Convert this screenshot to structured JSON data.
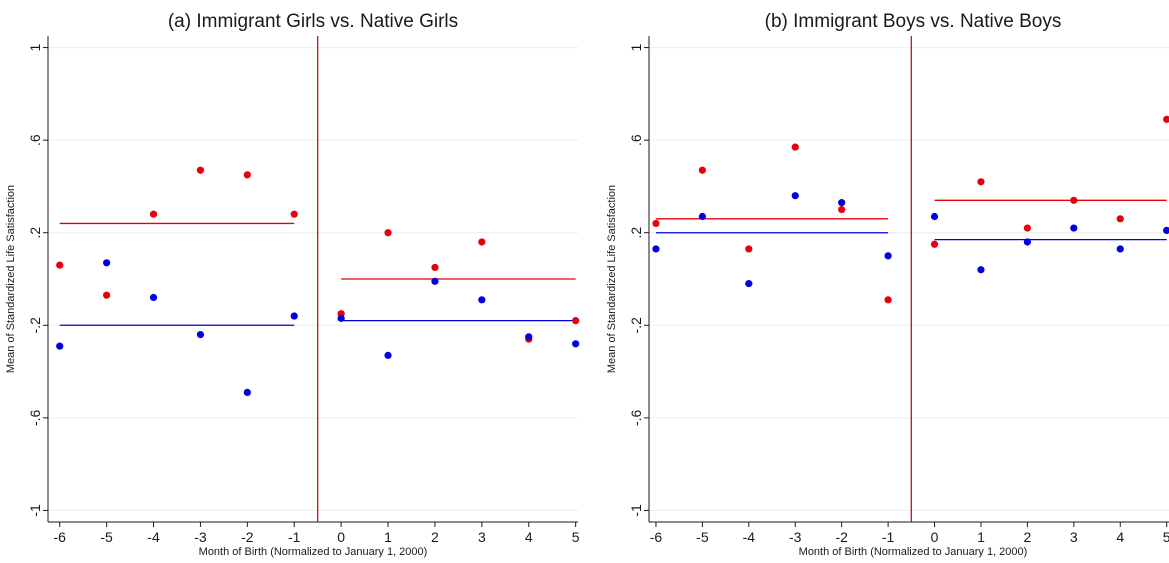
{
  "chart_data": [
    {
      "type": "scatter",
      "title": "(a) Immigrant Girls vs. Native Girls",
      "xlabel": "Month of Birth (Normalized to January 1, 2000)",
      "ylabel": "Mean of Standardized Life Satisfaction",
      "xticks": [
        "-6",
        "-5",
        "-4",
        "-3",
        "-2",
        "-1",
        "0",
        "1",
        "2",
        "3",
        "4",
        "5"
      ],
      "yticks": [
        {
          "value": -1,
          "label": "-1"
        },
        {
          "value": -0.6,
          "label": "-.6"
        },
        {
          "value": -0.2,
          "label": "-.2"
        },
        {
          "value": 0.2,
          "label": ".2"
        },
        {
          "value": 0.6,
          "label": ".6"
        },
        {
          "value": 1,
          "label": "1"
        }
      ],
      "xlim": [
        -6.25,
        5.05
      ],
      "ylim": [
        -1.05,
        1.05
      ],
      "grid": true,
      "cutoff": -0.5,
      "series": [
        {
          "color": "#e8000b",
          "x": [
            -6,
            -5,
            -4,
            -3,
            -2,
            -1,
            0,
            1,
            2,
            3,
            4,
            5
          ],
          "y": [
            0.06,
            -0.07,
            0.28,
            0.47,
            0.45,
            0.28,
            -0.15,
            0.2,
            0.05,
            0.16,
            -0.26,
            -0.18
          ],
          "fit": [
            {
              "x1": -6,
              "x2": -1,
              "y": 0.24
            },
            {
              "x1": 0,
              "x2": 5,
              "y": 0.0
            }
          ]
        },
        {
          "color": "#0000e0",
          "x": [
            -6,
            -5,
            -4,
            -3,
            -2,
            -1,
            0,
            1,
            2,
            3,
            4,
            5
          ],
          "y": [
            -0.29,
            0.07,
            -0.08,
            -0.24,
            -0.49,
            -0.16,
            -0.17,
            -0.33,
            -0.01,
            -0.09,
            -0.25,
            -0.28
          ],
          "fit": [
            {
              "x1": -6,
              "x2": -1,
              "y": -0.2
            },
            {
              "x1": 0,
              "x2": 5,
              "y": -0.18
            }
          ]
        }
      ]
    },
    {
      "type": "scatter",
      "title": "(b) Immigrant Boys vs. Native Boys",
      "xlabel": "Month of Birth (Normalized to January 1, 2000)",
      "ylabel": "Mean of Standardized Life Satisfaction",
      "xticks": [
        "-6",
        "-5",
        "-4",
        "-3",
        "-2",
        "-1",
        "0",
        "1",
        "2",
        "3",
        "4",
        "5"
      ],
      "yticks": [
        {
          "value": -1,
          "label": "-1"
        },
        {
          "value": -0.6,
          "label": "-.6"
        },
        {
          "value": -0.2,
          "label": "-.2"
        },
        {
          "value": 0.2,
          "label": ".2"
        },
        {
          "value": 0.6,
          "label": ".6"
        },
        {
          "value": 1,
          "label": "1"
        }
      ],
      "xlim": [
        -6.15,
        5.05
      ],
      "ylim": [
        -1.05,
        1.05
      ],
      "grid": true,
      "cutoff": -0.5,
      "series": [
        {
          "color": "#e8000b",
          "x": [
            -6,
            -5,
            -4,
            -3,
            -2,
            -1,
            0,
            1,
            2,
            3,
            4,
            5
          ],
          "y": [
            0.24,
            0.47,
            0.13,
            0.57,
            0.3,
            -0.09,
            0.15,
            0.42,
            0.22,
            0.34,
            0.26,
            0.69
          ],
          "fit": [
            {
              "x1": -6,
              "x2": -1,
              "y": 0.26
            },
            {
              "x1": 0,
              "x2": 5,
              "y": 0.34
            }
          ]
        },
        {
          "color": "#0000e0",
          "x": [
            -6,
            -5,
            -4,
            -3,
            -2,
            -1,
            0,
            1,
            2,
            3,
            4,
            5
          ],
          "y": [
            0.13,
            0.27,
            -0.02,
            0.36,
            0.33,
            0.1,
            0.27,
            0.04,
            0.16,
            0.22,
            0.13,
            0.21
          ],
          "fit": [
            {
              "x1": -6,
              "x2": -1,
              "y": 0.2
            },
            {
              "x1": 0,
              "x2": 5,
              "y": 0.17
            }
          ]
        }
      ]
    }
  ]
}
